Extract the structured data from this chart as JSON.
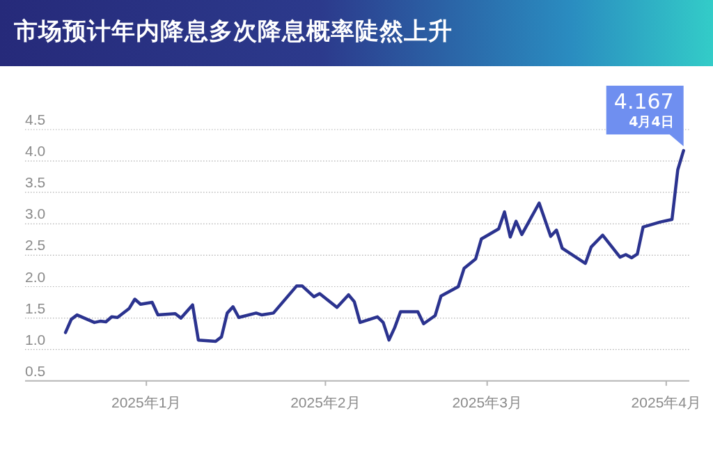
{
  "chart_data": {
    "type": "line",
    "title": "市场预计年内降息多次降息概率陡然上升",
    "x": [
      "2024-12-18",
      "2024-12-19",
      "2024-12-20",
      "2024-12-23",
      "2024-12-24",
      "2024-12-25",
      "2024-12-26",
      "2024-12-27",
      "2024-12-29",
      "2024-12-30",
      "2024-12-31",
      "2025-01-02",
      "2025-01-03",
      "2025-01-06",
      "2025-01-07",
      "2025-01-09",
      "2025-01-10",
      "2025-01-13",
      "2025-01-14",
      "2025-01-15",
      "2025-01-16",
      "2025-01-17",
      "2025-01-20",
      "2025-01-21",
      "2025-01-23",
      "2025-01-27",
      "2025-01-28",
      "2025-01-30",
      "2025-01-31",
      "2025-02-03",
      "2025-02-05",
      "2025-02-06",
      "2025-02-07",
      "2025-02-10",
      "2025-02-11",
      "2025-02-12",
      "2025-02-13",
      "2025-02-14",
      "2025-02-17",
      "2025-02-18",
      "2025-02-20",
      "2025-02-21",
      "2025-02-24",
      "2025-02-25",
      "2025-02-27",
      "2025-02-28",
      "2025-03-03",
      "2025-03-04",
      "2025-03-05",
      "2025-03-06",
      "2025-03-07",
      "2025-03-10",
      "2025-03-12",
      "2025-03-13",
      "2025-03-14",
      "2025-03-18",
      "2025-03-19",
      "2025-03-21",
      "2025-03-24",
      "2025-03-25",
      "2025-03-26",
      "2025-03-27",
      "2025-03-28",
      "2025-03-31",
      "2025-04-02",
      "2025-04-03",
      "2025-04-04"
    ],
    "series": [
      {
        "color": "#2b338f",
        "values": [
          1.27,
          1.48,
          1.55,
          1.43,
          1.45,
          1.44,
          1.52,
          1.51,
          1.65,
          1.8,
          1.72,
          1.75,
          1.55,
          1.57,
          1.5,
          1.71,
          1.15,
          1.13,
          1.2,
          1.58,
          1.68,
          1.51,
          1.58,
          1.55,
          1.58,
          2.01,
          2.01,
          1.84,
          1.89,
          1.67,
          1.87,
          1.76,
          1.43,
          1.52,
          1.43,
          1.15,
          1.35,
          1.6,
          1.6,
          1.41,
          1.54,
          1.85,
          2.0,
          2.29,
          2.44,
          2.76,
          2.92,
          3.19,
          2.79,
          3.04,
          2.83,
          3.33,
          2.8,
          2.9,
          2.61,
          2.37,
          2.63,
          2.82,
          2.47,
          2.51,
          2.46,
          2.52,
          2.95,
          3.03,
          3.07,
          3.86,
          4.167
        ]
      }
    ],
    "xlim": [
      "2024-12-11",
      "2025-04-05"
    ],
    "xticks": [
      {
        "value": "2025-01-01",
        "label": "2025年1月"
      },
      {
        "value": "2025-02-01",
        "label": "2025年2月"
      },
      {
        "value": "2025-03-01",
        "label": "2025年3月"
      },
      {
        "value": "2025-04-01",
        "label": "2025年4月"
      }
    ],
    "ylim": [
      0.5,
      4.5
    ],
    "yticks": [
      0.5,
      {
        "value": 1,
        "label": "1.0"
      },
      1.5,
      {
        "value": 2,
        "label": "2.0"
      },
      2.5,
      {
        "value": 3,
        "label": "3.0"
      },
      3.5,
      {
        "value": 4,
        "label": "4.0"
      },
      4.5
    ],
    "grid": "y",
    "annotations": [
      {
        "text": "4.167",
        "x": "2025-04-04",
        "y": 4.167
      },
      {
        "text": "4月4日",
        "x": "2025-04-04",
        "y": 4.167
      }
    ]
  }
}
